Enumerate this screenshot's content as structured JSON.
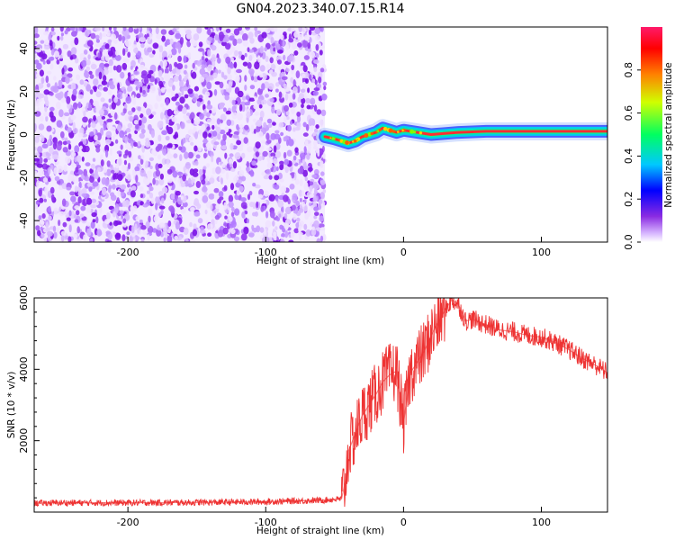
{
  "title": "GN04.2023.340.07.15.R14",
  "colors": {
    "snr_line": "#ee3333",
    "axis": "#000000",
    "background": "#ffffff",
    "colormap": [
      "#d8b8ff",
      "#8a2be2",
      "#0000ff",
      "#00c8ff",
      "#00ff60",
      "#d0ff00",
      "#ff8000",
      "#ff0000",
      "#ff1a6a"
    ]
  },
  "spectrogram": {
    "type": "heatmap",
    "xlabel": "Height of straight line (km)",
    "ylabel": "Frequency (Hz)",
    "xlim": [
      -268,
      148
    ],
    "ylim": [
      -50,
      50
    ],
    "xticks": [
      -200,
      -100,
      0,
      100
    ],
    "yticks": [
      -40,
      -20,
      0,
      20,
      40
    ],
    "xtick_labels": [
      "-200",
      "-100",
      "0",
      "100"
    ],
    "ytick_labels": [
      "-40",
      "-20",
      "0",
      "20",
      "40"
    ],
    "noise_region_x": [
      -268,
      -57
    ],
    "signal_track": {
      "x": [
        -57,
        -50,
        -45,
        -40,
        -35,
        -30,
        -25,
        -20,
        -15,
        -10,
        -5,
        0,
        10,
        20,
        30,
        40,
        60,
        80,
        100,
        120,
        148
      ],
      "freq": [
        -1,
        -2,
        -3,
        -4,
        -3,
        -1,
        0,
        1,
        3,
        2,
        1,
        2,
        1,
        0,
        0.5,
        1,
        1.5,
        1.5,
        1.5,
        1.5,
        1.5
      ]
    },
    "colorbar": {
      "label": "Normalized spectral amplitude",
      "ticks": [
        0.0,
        0.2,
        0.4,
        0.6,
        0.8
      ],
      "tick_labels": [
        "0.0",
        "0.2",
        "0.4",
        "0.6",
        "0.8"
      ],
      "range": [
        0,
        1
      ]
    }
  },
  "chart_data": {
    "type": "line",
    "xlabel": "Height of straight line (km)",
    "ylabel": "SNR (10 * v/v)",
    "xlim": [
      -268,
      148
    ],
    "ylim": [
      0,
      6000
    ],
    "xticks": [
      -200,
      -100,
      0,
      100
    ],
    "yticks": [
      2000,
      4000,
      6000
    ],
    "xtick_labels": [
      "-200",
      "-100",
      "0",
      "100"
    ],
    "ytick_labels": [
      "2000",
      "4000",
      "6000"
    ],
    "series": [
      {
        "x": [
          -268,
          -250,
          -200,
          -150,
          -100,
          -60,
          -45,
          -42,
          -40,
          -35,
          -30,
          -25,
          -20,
          -15,
          -10,
          -5,
          0,
          5,
          10,
          15,
          20,
          25,
          30,
          35,
          40,
          45,
          50,
          60,
          70,
          80,
          90,
          100,
          110,
          120,
          130,
          140,
          148
        ],
        "y": [
          250,
          260,
          260,
          270,
          290,
          330,
          370,
          900,
          1700,
          2200,
          2700,
          3000,
          3300,
          3650,
          3850,
          3950,
          2500,
          3900,
          4200,
          4500,
          4950,
          5300,
          5650,
          5950,
          5800,
          5350,
          5400,
          5250,
          5100,
          5050,
          4950,
          4900,
          4750,
          4550,
          4300,
          4100,
          3900
        ]
      }
    ]
  }
}
